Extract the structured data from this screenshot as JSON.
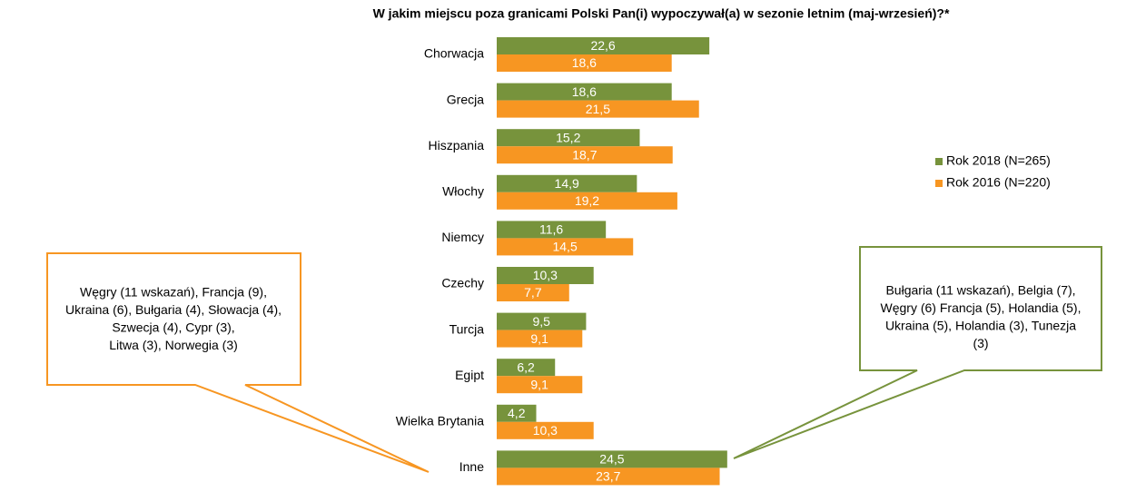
{
  "chart_data": {
    "type": "bar",
    "orientation": "horizontal",
    "title": "W jakim miejscu poza granicami Polski Pan(i) wypoczywał(a) w sezonie letnim (maj-wrzesień)?*",
    "categories": [
      "Chorwacja",
      "Grecja",
      "Hiszpania",
      "Włochy",
      "Niemcy",
      "Czechy",
      "Turcja",
      "Egipt",
      "Wielka Brytania",
      "Inne"
    ],
    "series": [
      {
        "name": "Rok 2018 (N=265)",
        "color": "#77933c",
        "values": [
          22.6,
          18.6,
          15.2,
          14.9,
          11.6,
          10.3,
          9.5,
          6.2,
          4.2,
          24.5
        ],
        "value_labels": [
          "22,6",
          "18,6",
          "15,2",
          "14,9",
          "11,6",
          "10,3",
          "9,5",
          "6,2",
          "4,2",
          "24,5"
        ]
      },
      {
        "name": "Rok 2016 (N=220)",
        "color": "#f79622",
        "values": [
          18.6,
          21.5,
          18.7,
          19.2,
          14.5,
          7.7,
          9.1,
          9.1,
          10.3,
          23.7
        ],
        "value_labels": [
          "18,6",
          "21,5",
          "18,7",
          "19,2",
          "14,5",
          "7,7",
          "9,1",
          "9,1",
          "10,3",
          "23,7"
        ]
      }
    ],
    "legend": "right",
    "annotations": [
      {
        "color": "#f79622",
        "lines": [
          "Węgry (11 wskazań), Francja (9),",
          "Ukraina (6), Bułgaria (4), Słowacja (4),",
          "Szwecja (4), Cypr (3),",
          "Litwa (3), Norwegia (3)"
        ]
      },
      {
        "color": "#77933c",
        "lines": [
          "Bułgaria (11 wskazań), Belgia (7),",
          "Węgry (6) Francja (5), Holandia (5),",
          "Ukraina (5), Holandia (3), Tunezja",
          "(3)"
        ]
      }
    ]
  }
}
